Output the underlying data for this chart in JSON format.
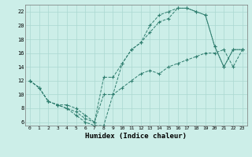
{
  "xlabel": "Humidex (Indice chaleur)",
  "bg_color": "#cceee8",
  "line_color": "#2e7d6e",
  "grid_color": "#aad8d0",
  "xlim": [
    -0.5,
    23.5
  ],
  "ylim": [
    5.5,
    23.0
  ],
  "xticks": [
    0,
    1,
    2,
    3,
    4,
    5,
    6,
    7,
    8,
    9,
    10,
    11,
    12,
    13,
    14,
    15,
    16,
    17,
    18,
    19,
    20,
    21,
    22,
    23
  ],
  "yticks": [
    6,
    8,
    10,
    12,
    14,
    16,
    18,
    20,
    22
  ],
  "line1_x": [
    0,
    1,
    2,
    3,
    4,
    5,
    6,
    7,
    8,
    9,
    10,
    11,
    12,
    13,
    14,
    15,
    16,
    17,
    18,
    19,
    20,
    21,
    22,
    23
  ],
  "line1_y": [
    12,
    11,
    9,
    8.5,
    8,
    7.5,
    6.5,
    6,
    12.5,
    12.5,
    14.5,
    16.5,
    17.5,
    19.0,
    20.5,
    21.0,
    22.5,
    22.5,
    22.0,
    21.5,
    17.0,
    14.0,
    16.5,
    16.5
  ],
  "line2_x": [
    0,
    1,
    2,
    3,
    4,
    5,
    6,
    7,
    8,
    9,
    10,
    11,
    12,
    13,
    14,
    15,
    16,
    17,
    18,
    19,
    20,
    21,
    22,
    23
  ],
  "line2_y": [
    12,
    11,
    9,
    8.5,
    8.5,
    8,
    7,
    6,
    10,
    10,
    14.5,
    16.5,
    17.5,
    20.0,
    21.5,
    22.0,
    22.5,
    22.5,
    22.0,
    21.5,
    17.0,
    14.0,
    16.5,
    16.5
  ],
  "line3_x": [
    0,
    1,
    2,
    3,
    4,
    5,
    6,
    7,
    8,
    9,
    10,
    11,
    12,
    13,
    14,
    15,
    16,
    17,
    18,
    19,
    20,
    21,
    22,
    23
  ],
  "line3_y": [
    12,
    11,
    9,
    8.5,
    8,
    7,
    6,
    5.5,
    5.5,
    10,
    11,
    12,
    13,
    13.5,
    13,
    14,
    14.5,
    15,
    15.5,
    16,
    16,
    16.5,
    14,
    16.5
  ]
}
